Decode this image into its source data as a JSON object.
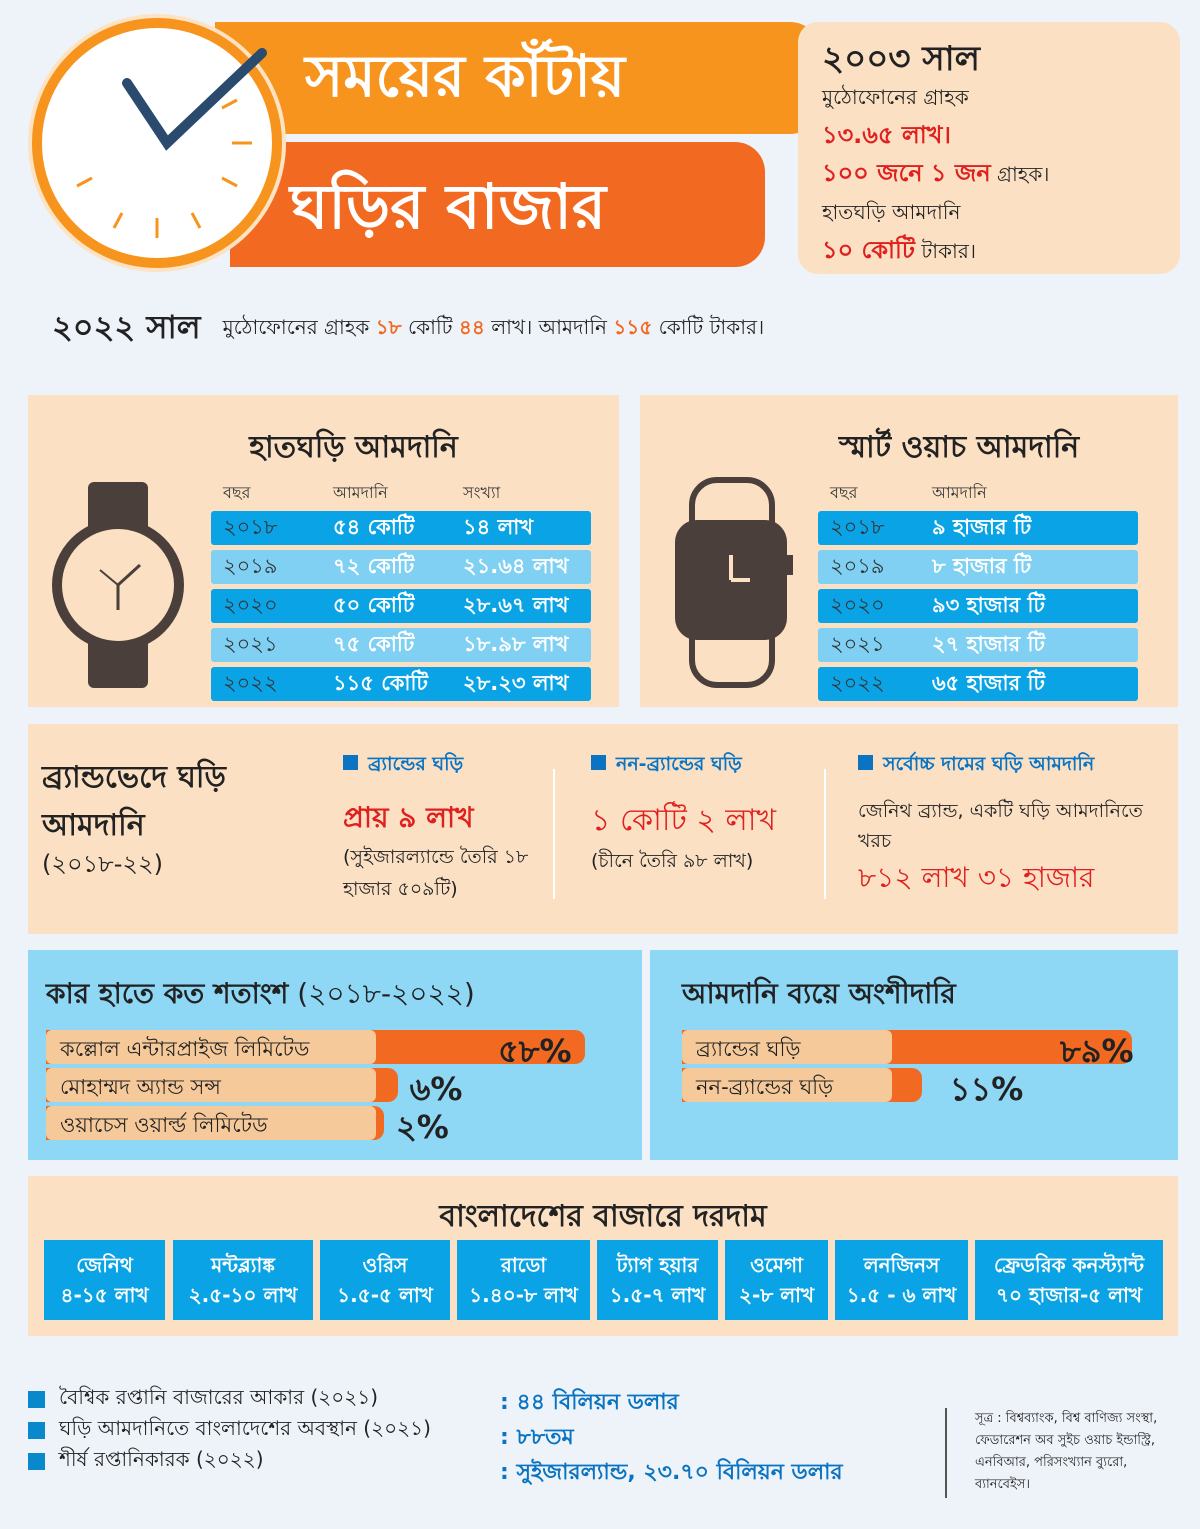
{
  "title": {
    "line1": "সময়ের কাঁটায়",
    "line2": "ঘড়ির বাজার"
  },
  "year2003": {
    "heading": "২০০৩ সাল",
    "l1": "মুঠোফোনের গ্রাহক",
    "l2": "১৩.৬৫ লাখ।",
    "l3a": "১০০ জনে ১ জন",
    "l3b": "গ্রাহক।",
    "l4": "হাতঘড়ি আমদানি",
    "l5a": "১০ কোটি",
    "l5b": "টাকার।"
  },
  "year2022": {
    "heading": "২০২২ সাল",
    "t1": "মুঠোফোনের গ্রাহক",
    "n1": "১৮",
    "t2": "কোটি",
    "n2": "৪৪",
    "t3": "লাখ। আমদানি",
    "n3": "১১৫",
    "t4": "কোটি টাকার।"
  },
  "watch_import": {
    "title": "হাতঘড়ি আমদানি",
    "headers": [
      "বছর",
      "আমদানি",
      "সংখ্যা"
    ],
    "rows": [
      [
        "২০১৮",
        "৫৪ কোটি",
        "১৪ লাখ"
      ],
      [
        "২০১৯",
        "৭২ কোটি",
        "২১.৬৪ লাখ"
      ],
      [
        "২০২০",
        "৫০ কোটি",
        "২৮.৬৭ লাখ"
      ],
      [
        "২০২১",
        "৭৫ কোটি",
        "১৮.৯৮ লাখ"
      ],
      [
        "২০২২",
        "১১৫ কোটি",
        "২৮.২৩ লাখ"
      ]
    ]
  },
  "smartwatch_import": {
    "title": "স্মার্ট ওয়াচ আমদানি",
    "headers": [
      "বছর",
      "আমদানি"
    ],
    "rows": [
      [
        "২০১৮",
        "৯ হাজার টি"
      ],
      [
        "২০১৯",
        "৮ হাজার টি"
      ],
      [
        "২০২০",
        "৯৩ হাজার টি"
      ],
      [
        "২০২১",
        "২৭ হাজার টি"
      ],
      [
        "২০২২",
        "৬৫ হাজার টি"
      ]
    ]
  },
  "brand": {
    "title": "ব্র্যান্ডভেদে ঘড়ি আমদানি",
    "period": "(২০১৮-২২)",
    "cols": [
      {
        "head": "ব্র্যান্ডের ঘড়ি",
        "value": "প্রায় ৯ লাখ",
        "note": "(সুইজারল্যান্ডে তৈরি ১৮ হাজার ৫০৯টি)"
      },
      {
        "head": "নন-ব্র্যান্ডের ঘড়ি",
        "value": "১ কোটি ২ লাখ",
        "note": "(চীনে তৈরি ৯৮ লাখ)"
      },
      {
        "head": "সর্বোচ্চ দামের ঘড়ি আমদানি",
        "note": "জেনিথ ব্র্যান্ড, একটি ঘড়ি আমদানিতে খরচ",
        "value": "৮১২ লাখ ৩১ হাজার"
      }
    ]
  },
  "share": {
    "title": "কার হাতে কত শতাংশ",
    "period": "(২০১৮-২০২২)",
    "items": [
      {
        "label": "কল্লোল এন্টারপ্রাইজ লিমিটেড",
        "pct": "৫৮%",
        "value": 58
      },
      {
        "label": "মোহাম্মদ অ্যান্ড সন্স",
        "pct": "৬%",
        "value": 6
      },
      {
        "label": "ওয়াচেস ওয়ার্ল্ড লিমিটেড",
        "pct": "২%",
        "value": 2
      }
    ]
  },
  "cost_share": {
    "title": "আমদানি ব্যয়ে অংশীদারি",
    "items": [
      {
        "label": "ব্র্যান্ডের ঘড়ি",
        "pct": "৮৯%",
        "value": 89
      },
      {
        "label": "নন-ব্র্যান্ডের ঘড়ি",
        "pct": "১১%",
        "value": 11
      }
    ]
  },
  "prices": {
    "title": "বাংলাদেশের বাজারে দরদাম",
    "items": [
      [
        "জেনিথ",
        "৪-১৫ লাখ"
      ],
      [
        "মন্টব্ল্যাঙ্ক",
        "২.৫-১০ লাখ"
      ],
      [
        "ওরিস",
        "১.৫-৫ লাখ"
      ],
      [
        "রাডো",
        "১.৪০-৮ লাখ"
      ],
      [
        "ট্যাগ হয়ার",
        "১.৫-৭ লাখ"
      ],
      [
        "ওমেগা",
        "২-৮ লাখ"
      ],
      [
        "লনজিনস",
        "১.৫ - ৬ লাখ"
      ],
      [
        "ফ্রেডরিক কনস্ট্যান্ট",
        "৭০ হাজার-৫ লাখ"
      ]
    ]
  },
  "facts": [
    {
      "label": "বৈশ্বিক রপ্তানি বাজারের আকার (২০২১)",
      "value": ": ৪৪ বিলিয়ন ডলার"
    },
    {
      "label": "ঘড়ি আমদানিতে বাংলাদেশের অবস্থান (২০২১)",
      "value": ": ৮৮তম"
    },
    {
      "label": "শীর্ষ রপ্তানিকারক (২০২২)",
      "value": ": সুইজারল্যান্ড, ২৩.৭০ বিলিয়ন ডলার"
    }
  ],
  "source": "সূত্র : বিশ্বব্যাংক, বিশ্ব বাণিজ্য সংস্থা, ফেডারেশন অব সুইচ ওয়াচ ইন্ডাস্ট্রি, এনবিআর, পরিসংখ্যান ব্যুরো, ব্যানবেইস।",
  "colors": {
    "orange": "#f7941d",
    "deep_orange": "#f26a21",
    "blue": "#0aa4e6",
    "light_blue": "#8ed8f6",
    "peach": "#fbe0c4",
    "red": "#e0201f"
  }
}
